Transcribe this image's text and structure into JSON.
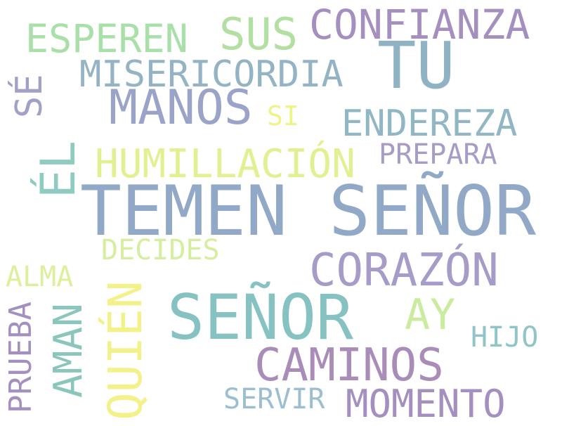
{
  "words": {
    "temen_senor": {
      "text": "TEMEN SEÑOR",
      "color": "#91a9c6"
    },
    "tu": {
      "text": "TU",
      "color": "#8fb3c2"
    },
    "senor": {
      "text": "SEÑOR",
      "color": "#86c2c2"
    },
    "confianza": {
      "text": "CONFIANZA",
      "color": "#a48fbf"
    },
    "sus": {
      "text": "SUS",
      "color": "#b2e0a3"
    },
    "esperen": {
      "text": "ESPEREN",
      "color": "#a9dfa9"
    },
    "misericordia": {
      "text": "MISERICORDIA",
      "color": "#94b3c4"
    },
    "manos": {
      "text": "MANOS",
      "color": "#9aa3c8"
    },
    "si": {
      "text": "SI",
      "color": "#eef38a"
    },
    "endereza": {
      "text": "ENDEREZA",
      "color": "#91b7c5"
    },
    "humillacion": {
      "text": "HUMILLACIÓN",
      "color": "#e3f091"
    },
    "prepara": {
      "text": "PREPARA",
      "color": "#a69cc5"
    },
    "decides": {
      "text": "DECIDES",
      "color": "#d6eea0"
    },
    "corazon": {
      "text": "CORAZÓN",
      "color": "#a79bc7"
    },
    "alma": {
      "text": "ALMA",
      "color": "#dcef9c"
    },
    "ay": {
      "text": "AY",
      "color": "#c9ec9f"
    },
    "hijo": {
      "text": "HIJO",
      "color": "#8fc5c6"
    },
    "caminos": {
      "text": "CAMINOS",
      "color": "#a98cb7"
    },
    "servir": {
      "text": "SERVIR",
      "color": "#9bbfd0"
    },
    "momento": {
      "text": "MOMENTO",
      "color": "#a58fbf"
    },
    "se": {
      "text": "SÉ",
      "color": "#a1a0c6"
    },
    "el": {
      "text": "ÉL",
      "color": "#8fcbc0"
    },
    "quien": {
      "text": "QUIÉN",
      "color": "#f3f28a"
    },
    "aman": {
      "text": "AMAN",
      "color": "#8bc6bc"
    },
    "prueba": {
      "text": "PRUEBA",
      "color": "#a490bf"
    }
  }
}
